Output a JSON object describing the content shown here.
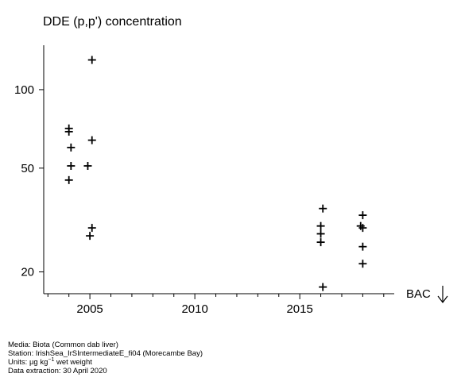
{
  "chart_data": {
    "type": "scatter",
    "title": "DDE (p,p') concentration",
    "xlabel": "",
    "ylabel": "",
    "y_scale": "log",
    "xlim": [
      2002.8,
      2019.5
    ],
    "ylim": [
      16.5,
      148
    ],
    "x_ticks": [
      2005,
      2010,
      2015
    ],
    "y_ticks": [
      20,
      50,
      100
    ],
    "marker": "+",
    "points": [
      {
        "x": 2004.0,
        "y": 71
      },
      {
        "x": 2004.0,
        "y": 69
      },
      {
        "x": 2004.1,
        "y": 60
      },
      {
        "x": 2004.1,
        "y": 51
      },
      {
        "x": 2004.0,
        "y": 45
      },
      {
        "x": 2005.1,
        "y": 130
      },
      {
        "x": 2005.1,
        "y": 64
      },
      {
        "x": 2004.9,
        "y": 51
      },
      {
        "x": 2005.1,
        "y": 29.5
      },
      {
        "x": 2005.0,
        "y": 27.5
      },
      {
        "x": 2016.1,
        "y": 35
      },
      {
        "x": 2016.0,
        "y": 30
      },
      {
        "x": 2016.0,
        "y": 28
      },
      {
        "x": 2016.0,
        "y": 26
      },
      {
        "x": 2016.1,
        "y": 17.5
      },
      {
        "x": 2018.0,
        "y": 33
      },
      {
        "x": 2017.9,
        "y": 30
      },
      {
        "x": 2018.0,
        "y": 29.5
      },
      {
        "x": 2018.0,
        "y": 25
      },
      {
        "x": 2018.0,
        "y": 21.5
      }
    ],
    "bac_label": "BAC",
    "grid": false,
    "legend": "none"
  },
  "metadata": {
    "media": "Media: Biota (Common dab liver)",
    "station": "Station: IrishSea_IrSIntermediateE_fi04 (Morecambe Bay)",
    "units_prefix": "Units: ",
    "units_unit": "µg kg",
    "units_exp": "−1",
    "units_suffix": " wet weight",
    "extraction": "Data extraction: 30 April 2020"
  }
}
